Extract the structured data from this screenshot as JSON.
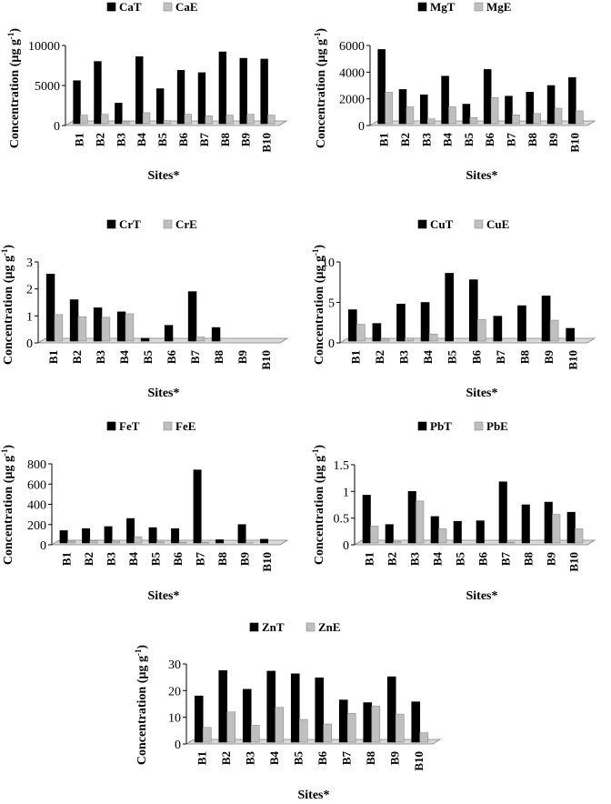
{
  "colors": {
    "total": "#000000",
    "extractable": "#bfbfbf",
    "floor": "#d9d9d9"
  },
  "chart_data": [
    {
      "type": "bar",
      "categories": [
        "B1",
        "B2",
        "B3",
        "B4",
        "B5",
        "B6",
        "B7",
        "B8",
        "B9",
        "B10"
      ],
      "series": [
        {
          "name": "CaT",
          "values": [
            5600,
            8000,
            2800,
            8600,
            4600,
            6900,
            6600,
            9200,
            8400,
            8300
          ]
        },
        {
          "name": "CaE",
          "values": [
            1300,
            1400,
            500,
            1600,
            600,
            1400,
            1200,
            1300,
            1400,
            1300
          ]
        }
      ],
      "xlabel": "Sites*",
      "ylabel": "Concentration (µg g",
      "ylabel_sup": "-1",
      "ylabel_end": ")",
      "ylim": [
        0,
        10000
      ],
      "yticks": [
        0,
        5000,
        10000
      ],
      "ytick_labels": [
        "0",
        "5000",
        "10000"
      ],
      "grid": false,
      "legend": "top"
    },
    {
      "type": "bar",
      "categories": [
        "B1",
        "B2",
        "B3",
        "B4",
        "B5",
        "B6",
        "B7",
        "B8",
        "B9",
        "B10"
      ],
      "series": [
        {
          "name": "MgT",
          "values": [
            5700,
            2700,
            2300,
            3700,
            1600,
            4200,
            2200,
            2500,
            3000,
            3600
          ]
        },
        {
          "name": "MgE",
          "values": [
            2500,
            1400,
            500,
            1400,
            600,
            2100,
            800,
            900,
            1300,
            1100
          ]
        }
      ],
      "xlabel": "Sites*",
      "ylabel": "Concentration (µg g",
      "ylabel_sup": "-1",
      "ylabel_end": ")",
      "ylim": [
        0,
        6000
      ],
      "yticks": [
        0,
        2000,
        4000,
        6000
      ],
      "ytick_labels": [
        "0",
        "2000",
        "4000",
        "6000"
      ],
      "grid": false,
      "legend": "top"
    },
    {
      "type": "bar",
      "categories": [
        "B1",
        "B2",
        "B3",
        "B4",
        "B5",
        "B6",
        "B7",
        "B8",
        "B9",
        "B10"
      ],
      "series": [
        {
          "name": "CrT",
          "values": [
            2.55,
            1.6,
            1.3,
            1.15,
            0.17,
            0.65,
            1.9,
            0.57,
            0,
            0
          ]
        },
        {
          "name": "CrE",
          "values": [
            1.05,
            0.97,
            0.95,
            1.08,
            0,
            0,
            0.22,
            0,
            0,
            0
          ]
        }
      ],
      "xlabel": "Sites*",
      "ylabel": "Concentration (µg g",
      "ylabel_sup": "-1",
      "ylabel_end": ")",
      "ylim": [
        0,
        3
      ],
      "yticks": [
        0,
        1,
        2,
        3
      ],
      "ytick_labels": [
        "0",
        "1",
        "2",
        "3"
      ],
      "grid": false,
      "legend": "top"
    },
    {
      "type": "bar",
      "categories": [
        "B1",
        "B2",
        "B3",
        "B4",
        "B5",
        "B6",
        "B7",
        "B8",
        "B9",
        "B10"
      ],
      "series": [
        {
          "name": "CuT",
          "values": [
            4.1,
            2.4,
            4.8,
            5.0,
            8.6,
            7.8,
            3.3,
            4.6,
            5.8,
            1.8
          ]
        },
        {
          "name": "CuE",
          "values": [
            2.3,
            0.5,
            0.6,
            1.1,
            0,
            2.9,
            0,
            0,
            2.8,
            0
          ]
        }
      ],
      "xlabel": "Sites*",
      "ylabel": "Concentration (µg g",
      "ylabel_sup": "-1",
      "ylabel_end": ")",
      "ylim": [
        0,
        10
      ],
      "yticks": [
        0,
        5,
        10
      ],
      "ytick_labels": [
        "0",
        "5",
        "10"
      ],
      "grid": false,
      "legend": "top"
    },
    {
      "type": "bar",
      "categories": [
        "B1",
        "B2",
        "B3",
        "B4",
        "B5",
        "B6",
        "B7",
        "B8",
        "B9",
        "B10"
      ],
      "series": [
        {
          "name": "FeT",
          "values": [
            140,
            160,
            180,
            260,
            170,
            160,
            740,
            50,
            200,
            55
          ]
        },
        {
          "name": "FeE",
          "values": [
            35,
            40,
            35,
            80,
            30,
            25,
            25,
            10,
            20,
            15
          ]
        }
      ],
      "xlabel": "Sites*",
      "ylabel": "Concentration (µg g",
      "ylabel_sup": "-1",
      "ylabel_end": ")",
      "ylim": [
        0,
        800
      ],
      "yticks": [
        0,
        200,
        400,
        600,
        800
      ],
      "ytick_labels": [
        "0",
        "200",
        "400",
        "600",
        "800"
      ],
      "grid": false,
      "legend": "top"
    },
    {
      "type": "bar",
      "categories": [
        "B1",
        "B2",
        "B3",
        "B4",
        "B5",
        "B6",
        "B7",
        "B8",
        "B9",
        "B10"
      ],
      "series": [
        {
          "name": "PbT",
          "values": [
            0.93,
            0.38,
            1.0,
            0.53,
            0.44,
            0.45,
            1.18,
            0.75,
            0.8,
            0.61
          ]
        },
        {
          "name": "PbE",
          "values": [
            0.35,
            0.06,
            0.82,
            0.3,
            0.03,
            0,
            0.05,
            0.03,
            0.57,
            0.3
          ]
        }
      ],
      "xlabel": "Sites*",
      "ylabel": "Concentration (µg g",
      "ylabel_sup": "-1",
      "ylabel_end": ")",
      "ylim": [
        0,
        1.5
      ],
      "yticks": [
        0,
        0.5,
        1,
        1.5
      ],
      "ytick_labels": [
        "0",
        "0.5",
        "1",
        "1.5"
      ],
      "grid": false,
      "legend": "top"
    },
    {
      "type": "bar",
      "categories": [
        "B1",
        "B2",
        "B3",
        "B4",
        "B5",
        "B6",
        "B7",
        "B8",
        "B9",
        "B10"
      ],
      "series": [
        {
          "name": "ZnT",
          "values": [
            18,
            27.5,
            20.5,
            27.3,
            26.3,
            24.8,
            16.5,
            15.5,
            25.2,
            15.8
          ]
        },
        {
          "name": "ZnE",
          "values": [
            6.2,
            12,
            7,
            13.7,
            9.2,
            7.5,
            11.5,
            14.2,
            11.2,
            4.2
          ]
        }
      ],
      "xlabel": "Sites*",
      "ylabel": "Concentration (µg g",
      "ylabel_sup": "-1",
      "ylabel_end": ")",
      "ylim": [
        0,
        30
      ],
      "yticks": [
        0,
        10,
        20,
        30
      ],
      "ytick_labels": [
        "0",
        "10",
        "20",
        "30"
      ],
      "grid": false,
      "legend": "top"
    }
  ]
}
